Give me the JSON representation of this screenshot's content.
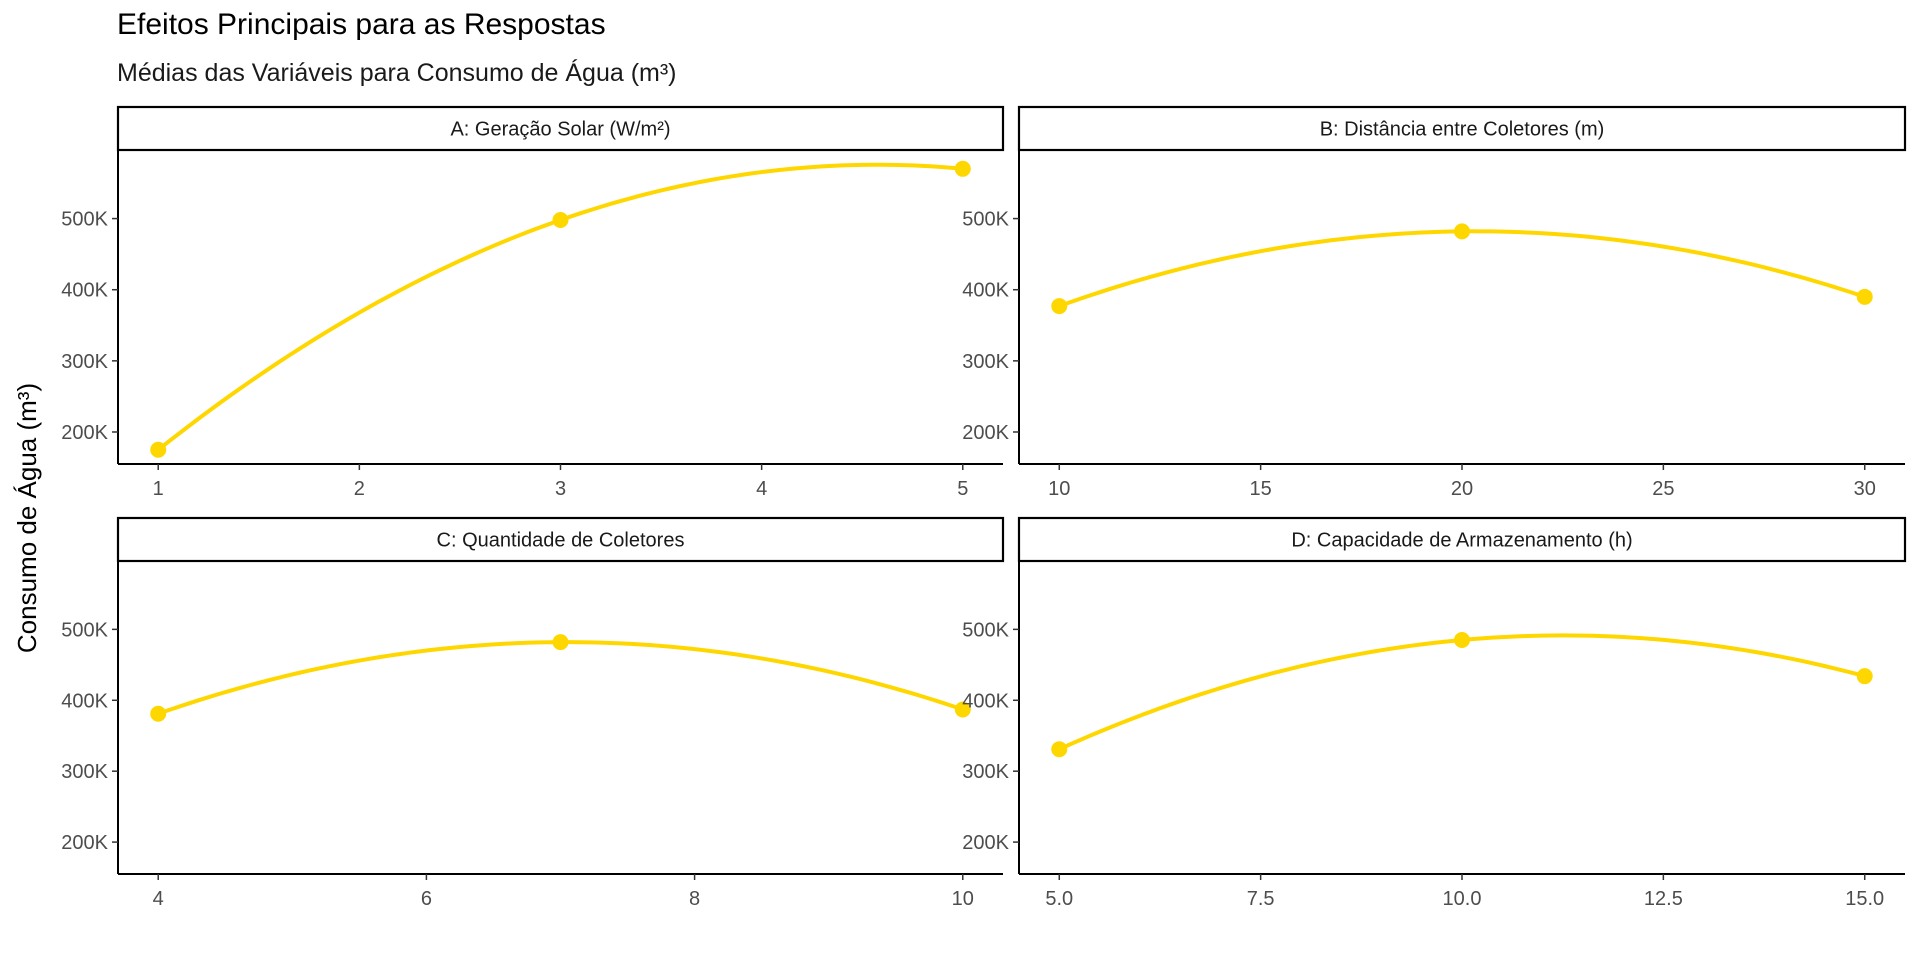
{
  "title": "Efeitos Principais para as Respostas",
  "subtitle": "Médias das Variáveis para Consumo de Água (m³)",
  "ylabel": "Consumo de Água (m³)",
  "colors": {
    "line": "#FFD700",
    "point": "#FFD700",
    "axis": "#000000",
    "tick_label": "#4d4d4d"
  },
  "chart_data": [
    {
      "type": "line",
      "panel": "A: Geração Solar (W/m²)",
      "x": [
        1,
        3,
        5
      ],
      "values": [
        175000,
        498000,
        570000
      ],
      "xticks": [
        1,
        2,
        3,
        4,
        5
      ],
      "xtick_labels": [
        "1",
        "2",
        "3",
        "4",
        "5"
      ],
      "xlim": [
        0.8,
        5.2
      ],
      "yticks": [
        200000,
        300000,
        400000,
        500000
      ],
      "ytick_labels": [
        "200K",
        "300K",
        "400K",
        "500K"
      ],
      "ylim": [
        155000,
        595000
      ],
      "smooth": "quadratic"
    },
    {
      "type": "line",
      "panel": "B: Distância entre Coletores (m)",
      "x": [
        10,
        20,
        30
      ],
      "values": [
        377000,
        482000,
        390000
      ],
      "xticks": [
        10,
        15,
        20,
        25,
        30
      ],
      "xtick_labels": [
        "10",
        "15",
        "20",
        "25",
        "30"
      ],
      "xlim": [
        9,
        31
      ],
      "yticks": [
        200000,
        300000,
        400000,
        500000
      ],
      "ytick_labels": [
        "200K",
        "300K",
        "400K",
        "500K"
      ],
      "ylim": [
        155000,
        595000
      ],
      "smooth": "quadratic"
    },
    {
      "type": "line",
      "panel": "C: Quantidade de Coletores",
      "x": [
        4,
        7,
        10
      ],
      "values": [
        381000,
        482000,
        387000
      ],
      "xticks": [
        4,
        6,
        8,
        10
      ],
      "xtick_labels": [
        "4",
        "6",
        "8",
        "10"
      ],
      "xlim": [
        3.7,
        10.3
      ],
      "yticks": [
        200000,
        300000,
        400000,
        500000
      ],
      "ytick_labels": [
        "200K",
        "300K",
        "400K",
        "500K"
      ],
      "ylim": [
        155000,
        595000
      ],
      "smooth": "quadratic"
    },
    {
      "type": "line",
      "panel": "D: Capacidade de Armazenamento (h)",
      "x": [
        5,
        10,
        15
      ],
      "values": [
        331000,
        485000,
        434000
      ],
      "xticks": [
        5,
        7.5,
        10,
        12.5,
        15
      ],
      "xtick_labels": [
        "5.0",
        "7.5",
        "10.0",
        "12.5",
        "15.0"
      ],
      "xlim": [
        4.5,
        15.5
      ],
      "yticks": [
        200000,
        300000,
        400000,
        500000
      ],
      "ytick_labels": [
        "200K",
        "300K",
        "400K",
        "500K"
      ],
      "ylim": [
        155000,
        595000
      ],
      "smooth": "quadratic"
    }
  ]
}
